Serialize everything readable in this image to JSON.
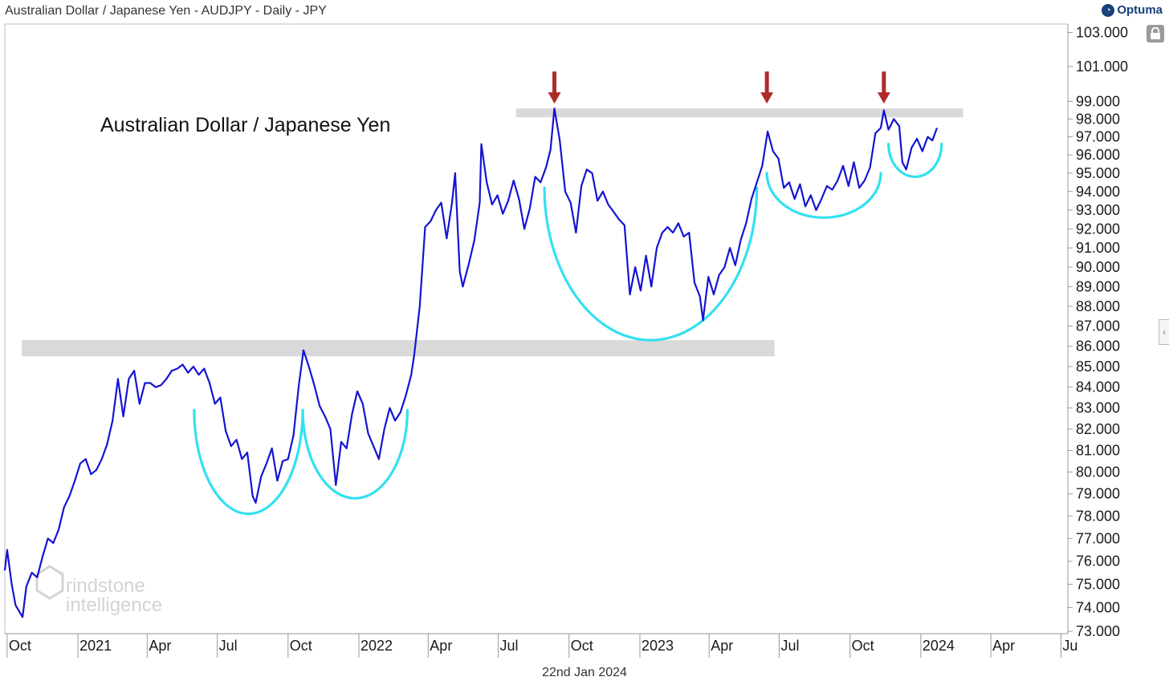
{
  "header": {
    "title": "Australian Dollar / Japanese Yen - AUDJPY - Daily - JPY",
    "brand": "Optuma"
  },
  "footer": {
    "date": "22nd Jan 2024"
  },
  "watermark": {
    "line1": "rindstone",
    "line2": "intelligence"
  },
  "colors": {
    "price_line": "#1414d2",
    "arc": "#33e0f0",
    "zone": "#d9d9d9",
    "arrow": "#b02a2a",
    "axis": "#9a9a9a",
    "text": "#1a1a1a",
    "watermark": "#d3d3d3"
  },
  "icons": {
    "lock": "lock-icon",
    "collapse": "chevron-left-icon",
    "brand": "optuma-logo-icon"
  },
  "chart_data": {
    "type": "line",
    "title": "Australian Dollar / Japanese Yen",
    "xlabel": "",
    "ylabel": "",
    "y_scale": "log",
    "ylim": [
      72.9,
      103.5
    ],
    "xlim": [
      "2020-09-28",
      "2024-07-10"
    ],
    "grid": false,
    "x_ticks": [
      {
        "label": "Oct",
        "date": "2020-10-01"
      },
      {
        "label": "2021",
        "date": "2021-01-01"
      },
      {
        "label": "Apr",
        "date": "2021-04-01"
      },
      {
        "label": "Jul",
        "date": "2021-07-01"
      },
      {
        "label": "Oct",
        "date": "2021-10-01"
      },
      {
        "label": "2022",
        "date": "2022-01-01"
      },
      {
        "label": "Apr",
        "date": "2022-04-01"
      },
      {
        "label": "Jul",
        "date": "2022-07-01"
      },
      {
        "label": "Oct",
        "date": "2022-10-01"
      },
      {
        "label": "2023",
        "date": "2023-01-01"
      },
      {
        "label": "Apr",
        "date": "2023-04-01"
      },
      {
        "label": "Jul",
        "date": "2023-07-01"
      },
      {
        "label": "Oct",
        "date": "2023-10-01"
      },
      {
        "label": "2024",
        "date": "2024-01-01"
      },
      {
        "label": "Apr",
        "date": "2024-04-01"
      },
      {
        "label": "Ju",
        "date": "2024-07-01"
      }
    ],
    "y_ticks": [
      {
        "label": "73.000",
        "value": 73
      },
      {
        "label": "74.000",
        "value": 74
      },
      {
        "label": "75.000",
        "value": 75
      },
      {
        "label": "76.000",
        "value": 76
      },
      {
        "label": "77.000",
        "value": 77
      },
      {
        "label": "78.000",
        "value": 78
      },
      {
        "label": "79.000",
        "value": 79
      },
      {
        "label": "80.000",
        "value": 80
      },
      {
        "label": "81.000",
        "value": 81
      },
      {
        "label": "82.000",
        "value": 82
      },
      {
        "label": "83.000",
        "value": 83
      },
      {
        "label": "84.000",
        "value": 84
      },
      {
        "label": "85.000",
        "value": 85
      },
      {
        "label": "86.000",
        "value": 86
      },
      {
        "label": "87.000",
        "value": 87
      },
      {
        "label": "88.000",
        "value": 88
      },
      {
        "label": "89.000",
        "value": 89
      },
      {
        "label": "90.000",
        "value": 90
      },
      {
        "label": "91.000",
        "value": 91
      },
      {
        "label": "92.000",
        "value": 92
      },
      {
        "label": "93.000",
        "value": 93
      },
      {
        "label": "94.000",
        "value": 94
      },
      {
        "label": "95.000",
        "value": 95
      },
      {
        "label": "96.000",
        "value": 96
      },
      {
        "label": "97.000",
        "value": 97
      },
      {
        "label": "98.000",
        "value": 98
      },
      {
        "label": "99.000",
        "value": 99
      },
      {
        "label": "101.000",
        "value": 101
      },
      {
        "label": "103.000",
        "value": 103
      }
    ],
    "series": [
      {
        "values": [
          [
            "2020-09-28",
            75.6
          ],
          [
            "2020-10-01",
            76.5
          ],
          [
            "2020-10-07",
            75.0
          ],
          [
            "2020-10-12",
            74.1
          ],
          [
            "2020-10-21",
            73.6
          ],
          [
            "2020-10-26",
            74.9
          ],
          [
            "2020-11-02",
            75.5
          ],
          [
            "2020-11-09",
            75.3
          ],
          [
            "2020-11-16",
            76.2
          ],
          [
            "2020-11-23",
            77.0
          ],
          [
            "2020-11-30",
            76.8
          ],
          [
            "2020-12-07",
            77.4
          ],
          [
            "2020-12-14",
            78.4
          ],
          [
            "2020-12-21",
            78.9
          ],
          [
            "2020-12-28",
            79.6
          ],
          [
            "2021-01-04",
            80.4
          ],
          [
            "2021-01-11",
            80.6
          ],
          [
            "2021-01-18",
            79.9
          ],
          [
            "2021-01-25",
            80.1
          ],
          [
            "2021-02-01",
            80.6
          ],
          [
            "2021-02-08",
            81.3
          ],
          [
            "2021-02-15",
            82.4
          ],
          [
            "2021-02-22",
            84.4
          ],
          [
            "2021-03-01",
            82.6
          ],
          [
            "2021-03-08",
            84.4
          ],
          [
            "2021-03-15",
            84.8
          ],
          [
            "2021-03-22",
            83.2
          ],
          [
            "2021-03-29",
            84.2
          ],
          [
            "2021-04-05",
            84.2
          ],
          [
            "2021-04-12",
            84.0
          ],
          [
            "2021-04-19",
            84.1
          ],
          [
            "2021-04-26",
            84.4
          ],
          [
            "2021-05-03",
            84.8
          ],
          [
            "2021-05-10",
            84.9
          ],
          [
            "2021-05-17",
            85.1
          ],
          [
            "2021-05-24",
            84.7
          ],
          [
            "2021-05-31",
            85.0
          ],
          [
            "2021-06-07",
            84.6
          ],
          [
            "2021-06-14",
            84.9
          ],
          [
            "2021-06-21",
            84.2
          ],
          [
            "2021-06-28",
            83.2
          ],
          [
            "2021-07-05",
            83.5
          ],
          [
            "2021-07-12",
            81.9
          ],
          [
            "2021-07-19",
            81.2
          ],
          [
            "2021-07-26",
            81.5
          ],
          [
            "2021-08-02",
            80.6
          ],
          [
            "2021-08-09",
            80.9
          ],
          [
            "2021-08-16",
            78.9
          ],
          [
            "2021-08-20",
            78.6
          ],
          [
            "2021-08-27",
            79.8
          ],
          [
            "2021-09-03",
            80.4
          ],
          [
            "2021-09-10",
            81.1
          ],
          [
            "2021-09-17",
            79.6
          ],
          [
            "2021-09-24",
            80.5
          ],
          [
            "2021-10-01",
            80.6
          ],
          [
            "2021-10-08",
            81.7
          ],
          [
            "2021-10-15",
            84.1
          ],
          [
            "2021-10-21",
            85.8
          ],
          [
            "2021-10-28",
            85.0
          ],
          [
            "2021-11-04",
            84.1
          ],
          [
            "2021-11-11",
            83.1
          ],
          [
            "2021-11-18",
            82.6
          ],
          [
            "2021-11-25",
            82.0
          ],
          [
            "2021-12-02",
            79.4
          ],
          [
            "2021-12-09",
            81.4
          ],
          [
            "2021-12-16",
            81.1
          ],
          [
            "2021-12-23",
            82.7
          ],
          [
            "2021-12-30",
            83.8
          ],
          [
            "2022-01-06",
            83.2
          ],
          [
            "2022-01-13",
            81.8
          ],
          [
            "2022-01-20",
            81.2
          ],
          [
            "2022-01-27",
            80.6
          ],
          [
            "2022-02-03",
            82.0
          ],
          [
            "2022-02-10",
            83.0
          ],
          [
            "2022-02-17",
            82.4
          ],
          [
            "2022-02-24",
            82.8
          ],
          [
            "2022-03-03",
            83.6
          ],
          [
            "2022-03-10",
            84.6
          ],
          [
            "2022-03-14",
            85.6
          ],
          [
            "2022-03-21",
            88.0
          ],
          [
            "2022-03-28",
            92.1
          ],
          [
            "2022-04-04",
            92.4
          ],
          [
            "2022-04-11",
            93.0
          ],
          [
            "2022-04-18",
            93.4
          ],
          [
            "2022-04-25",
            91.5
          ],
          [
            "2022-05-02",
            93.4
          ],
          [
            "2022-05-06",
            95.0
          ],
          [
            "2022-05-12",
            89.8
          ],
          [
            "2022-05-16",
            89.0
          ],
          [
            "2022-05-24",
            90.2
          ],
          [
            "2022-05-31",
            91.4
          ],
          [
            "2022-06-07",
            93.4
          ],
          [
            "2022-06-09",
            96.6
          ],
          [
            "2022-06-16",
            94.5
          ],
          [
            "2022-06-23",
            93.3
          ],
          [
            "2022-06-30",
            93.8
          ],
          [
            "2022-07-07",
            92.8
          ],
          [
            "2022-07-14",
            93.5
          ],
          [
            "2022-07-21",
            94.6
          ],
          [
            "2022-07-28",
            93.6
          ],
          [
            "2022-08-04",
            92.0
          ],
          [
            "2022-08-11",
            93.1
          ],
          [
            "2022-08-18",
            94.8
          ],
          [
            "2022-08-25",
            94.5
          ],
          [
            "2022-09-01",
            95.3
          ],
          [
            "2022-09-07",
            96.3
          ],
          [
            "2022-09-12",
            98.6
          ],
          [
            "2022-09-19",
            96.8
          ],
          [
            "2022-09-26",
            94.0
          ],
          [
            "2022-10-03",
            93.4
          ],
          [
            "2022-10-10",
            91.8
          ],
          [
            "2022-10-17",
            94.3
          ],
          [
            "2022-10-24",
            95.2
          ],
          [
            "2022-10-31",
            95.0
          ],
          [
            "2022-11-07",
            93.5
          ],
          [
            "2022-11-14",
            94.0
          ],
          [
            "2022-11-21",
            93.3
          ],
          [
            "2022-11-28",
            92.9
          ],
          [
            "2022-12-05",
            92.5
          ],
          [
            "2022-12-12",
            92.2
          ],
          [
            "2022-12-19",
            88.6
          ],
          [
            "2022-12-26",
            90.0
          ],
          [
            "2023-01-02",
            88.8
          ],
          [
            "2023-01-09",
            90.6
          ],
          [
            "2023-01-16",
            89.0
          ],
          [
            "2023-01-23",
            91.0
          ],
          [
            "2023-01-30",
            91.8
          ],
          [
            "2023-02-06",
            92.1
          ],
          [
            "2023-02-13",
            91.8
          ],
          [
            "2023-02-20",
            92.3
          ],
          [
            "2023-02-27",
            91.6
          ],
          [
            "2023-03-06",
            91.8
          ],
          [
            "2023-03-13",
            89.2
          ],
          [
            "2023-03-20",
            88.5
          ],
          [
            "2023-03-24",
            87.3
          ],
          [
            "2023-03-31",
            89.5
          ],
          [
            "2023-04-07",
            88.6
          ],
          [
            "2023-04-14",
            89.6
          ],
          [
            "2023-04-21",
            90.0
          ],
          [
            "2023-04-28",
            91.0
          ],
          [
            "2023-05-05",
            90.1
          ],
          [
            "2023-05-12",
            91.4
          ],
          [
            "2023-05-19",
            92.3
          ],
          [
            "2023-05-26",
            93.6
          ],
          [
            "2023-06-02",
            94.5
          ],
          [
            "2023-06-09",
            95.4
          ],
          [
            "2023-06-16",
            97.3
          ],
          [
            "2023-06-23",
            96.2
          ],
          [
            "2023-06-30",
            95.8
          ],
          [
            "2023-07-07",
            94.2
          ],
          [
            "2023-07-14",
            94.5
          ],
          [
            "2023-07-21",
            93.6
          ],
          [
            "2023-07-28",
            94.4
          ],
          [
            "2023-08-04",
            93.2
          ],
          [
            "2023-08-11",
            93.8
          ],
          [
            "2023-08-18",
            93.0
          ],
          [
            "2023-08-25",
            93.6
          ],
          [
            "2023-09-01",
            94.3
          ],
          [
            "2023-09-08",
            94.1
          ],
          [
            "2023-09-15",
            94.6
          ],
          [
            "2023-09-22",
            95.4
          ],
          [
            "2023-09-29",
            94.3
          ],
          [
            "2023-10-06",
            95.6
          ],
          [
            "2023-10-13",
            94.2
          ],
          [
            "2023-10-20",
            94.6
          ],
          [
            "2023-10-27",
            95.3
          ],
          [
            "2023-11-03",
            97.2
          ],
          [
            "2023-11-10",
            97.5
          ],
          [
            "2023-11-14",
            98.5
          ],
          [
            "2023-11-20",
            97.4
          ],
          [
            "2023-11-27",
            98.0
          ],
          [
            "2023-12-04",
            97.6
          ],
          [
            "2023-12-08",
            95.6
          ],
          [
            "2023-12-13",
            95.2
          ],
          [
            "2023-12-20",
            96.4
          ],
          [
            "2023-12-27",
            96.9
          ],
          [
            "2024-01-03",
            96.2
          ],
          [
            "2024-01-10",
            97.0
          ],
          [
            "2024-01-16",
            96.8
          ],
          [
            "2024-01-22",
            97.5
          ]
        ]
      }
    ],
    "resistance_zones": [
      {
        "from": "2020-10-20",
        "to": "2023-06-25",
        "low": 85.5,
        "high": 86.3
      },
      {
        "from": "2022-07-24",
        "to": "2024-02-25",
        "low": 98.1,
        "high": 98.6
      }
    ],
    "cup_arcs": [
      {
        "from": "2021-06-01",
        "to": "2021-10-20",
        "rim": 82.9,
        "bottom": 78.1
      },
      {
        "from": "2021-10-20",
        "to": "2022-03-05",
        "rim": 82.9,
        "bottom": 78.8
      },
      {
        "from": "2022-08-30",
        "to": "2023-06-02",
        "rim": 94.2,
        "bottom": 86.3
      },
      {
        "from": "2023-06-15",
        "to": "2023-11-10",
        "rim": 95.0,
        "bottom": 92.6
      },
      {
        "from": "2023-11-20",
        "to": "2024-01-28",
        "rim": 96.6,
        "bottom": 94.8
      }
    ],
    "arrows": [
      {
        "date": "2022-09-12",
        "value": 98.6
      },
      {
        "date": "2023-06-15",
        "value": 98.6
      },
      {
        "date": "2023-11-14",
        "value": 98.6
      }
    ]
  }
}
